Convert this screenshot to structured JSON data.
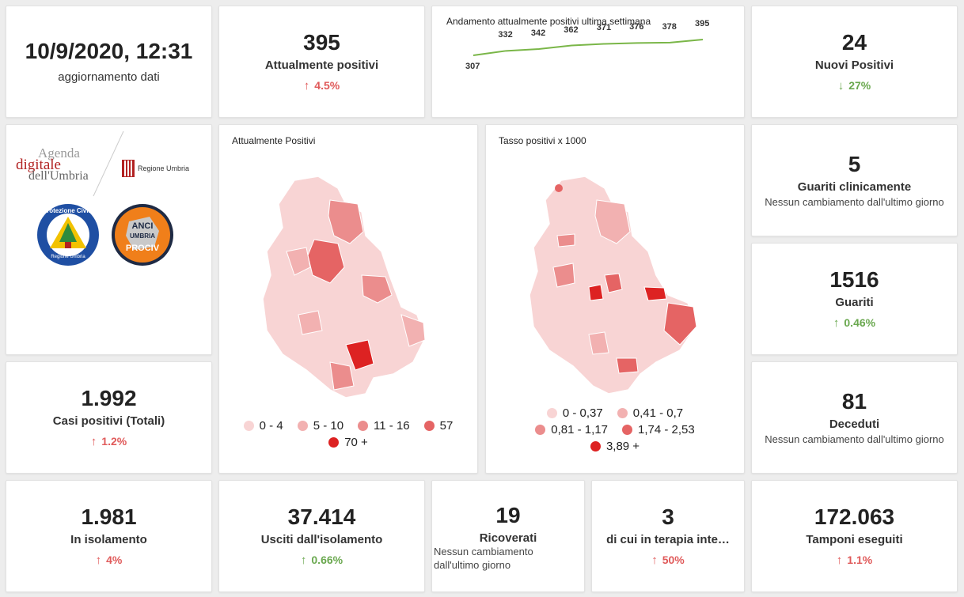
{
  "update": {
    "datetime": "10/9/2020, 12:31",
    "label": "aggiornamento dati"
  },
  "attualmente_positivi": {
    "value": "395",
    "label": "Attualmente positivi",
    "delta": "4.5%"
  },
  "trend": {
    "title": "Andamento attualmente positivi ultima settimana",
    "values": [
      "307",
      "332",
      "342",
      "362",
      "371",
      "376",
      "378",
      "395"
    ],
    "line_color": "#7ab648"
  },
  "nuovi_positivi": {
    "value": "24",
    "label": "Nuovi Positivi",
    "delta": "27%"
  },
  "logos": {
    "agenda_line1": "Agenda",
    "agenda_line2": "digitale",
    "agenda_line3": "dell'Umbria",
    "regione": "Regione Umbria",
    "protezione_top": "Protezione Civile",
    "protezione_bottom": "Regione Umbria",
    "anci_line1": "ANCI",
    "anci_line2": "UMBRIA",
    "anci_line3": "PROCIV"
  },
  "map_positivi": {
    "title": "Attualmente Positivi",
    "legend": [
      {
        "label": "0 - 4",
        "color": "#f8d4d4"
      },
      {
        "label": "5 - 10",
        "color": "#f2b1b1"
      },
      {
        "label": "11 - 16",
        "color": "#eb8d8d"
      },
      {
        "label": "57",
        "color": "#e56464"
      },
      {
        "label": "70 +",
        "color": "#dd2222"
      }
    ]
  },
  "map_tasso": {
    "title": "Tasso positivi x 1000",
    "legend": [
      {
        "label": "0 - 0,37",
        "color": "#f8d4d4"
      },
      {
        "label": "0,41 - 0,7",
        "color": "#f2b1b1"
      },
      {
        "label": "0,81 - 1,17",
        "color": "#eb8d8d"
      },
      {
        "label": "1,74 - 2,53",
        "color": "#e56464"
      },
      {
        "label": "3,89 +",
        "color": "#dd2222"
      }
    ]
  },
  "guariti_clinicamente": {
    "value": "5",
    "label": "Guariti clinicamente",
    "sub": "Nessun cambiamento dall'ultimo giorno"
  },
  "guariti": {
    "value": "1516",
    "label": "Guariti",
    "delta": "0.46%"
  },
  "casi_totali": {
    "value": "1.992",
    "label": "Casi positivi (Totali)",
    "delta": "1.2%"
  },
  "deceduti": {
    "value": "81",
    "label": "Deceduti",
    "sub": "Nessun cambiamento dall'ultimo giorno"
  },
  "isolamento": {
    "value": "1.981",
    "label": "In isolamento",
    "delta": "4%"
  },
  "usciti": {
    "value": "37.414",
    "label": "Usciti dall'isolamento",
    "delta": "0.66%"
  },
  "ricoverati": {
    "value": "19",
    "label": "Ricoverati",
    "sub": "Nessun cambiamento dall'ultimo giorno"
  },
  "terapia": {
    "value": "3",
    "label": "di cui in terapia inte…",
    "delta": "50%"
  },
  "tamponi": {
    "value": "172.063",
    "label": "Tamponi eseguiti",
    "delta": "1.1%"
  }
}
